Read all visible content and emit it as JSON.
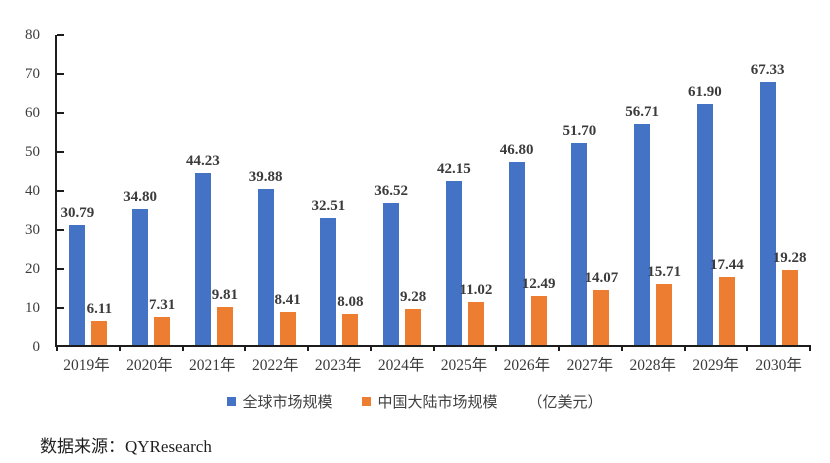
{
  "chart_data": {
    "type": "bar",
    "title": "",
    "categories": [
      "2019年",
      "2020年",
      "2021年",
      "2022年",
      "2023年",
      "2024年",
      "2025年",
      "2026年",
      "2027年",
      "2028年",
      "2029年",
      "2030年"
    ],
    "series": [
      {
        "name": "全球市场规模",
        "color": "#4472C4",
        "values": [
          30.79,
          34.8,
          44.23,
          39.88,
          32.51,
          36.52,
          42.15,
          46.8,
          51.7,
          56.71,
          61.9,
          67.33
        ]
      },
      {
        "name": "中国大陆市场规模",
        "color": "#ED7D31",
        "values": [
          6.11,
          7.31,
          9.81,
          8.41,
          8.08,
          9.28,
          11.02,
          12.49,
          14.07,
          15.71,
          17.44,
          19.28
        ]
      }
    ],
    "unit_label": "（亿美元）",
    "xlabel": "",
    "ylabel": "",
    "ylim": [
      0,
      80
    ],
    "ytick_step": 10,
    "grid": false,
    "legend_position": "bottom",
    "value_labels": true
  },
  "source": {
    "label": "数据来源：QYResearch"
  }
}
